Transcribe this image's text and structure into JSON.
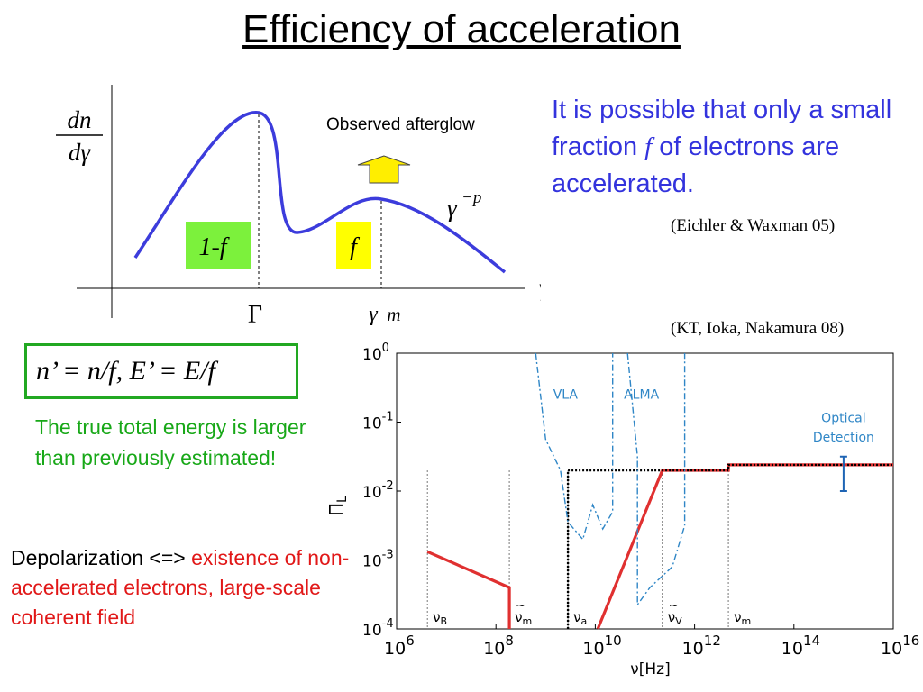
{
  "title": "Efficiency of acceleration",
  "distribution_plot": {
    "y_label_num": "dn",
    "y_label_den": "dγ",
    "x_label": "γ",
    "power_law": "γ",
    "power_law_exp": "−p",
    "peak1_label": "Γ",
    "peak2_label": "γ",
    "peak2_sub": "m",
    "box1_label": "1-f",
    "box2_label": "f",
    "observed_label": "Observed afterglow",
    "colors": {
      "curve": "#3c3cdc",
      "box": "#7cf13c",
      "box2": "#ffff00",
      "arrow": "#ffee00"
    }
  },
  "right_text": {
    "line_a": "It is possible that only a small fraction ",
    "italic_f": "f",
    "line_b": " of electrons are accelerated."
  },
  "citation1": "(Eichler & Waxman 05)",
  "citation2": "(KT, Ioka, Nakamura 08)",
  "equation": "n’ = n/f, E’ = E/f",
  "green_text": "The true total energy is larger than previously estimated!",
  "depolarization": {
    "prefix": "Depolarization <=> ",
    "red": "existence of non-accelerated electrons, large-scale coherent field"
  },
  "chart_data": {
    "type": "line",
    "xlabel": "ν[Hz]",
    "ylabel": "Π",
    "ylabel_sub": "L",
    "x_scale": "log",
    "y_scale": "log",
    "xlim_log10": [
      6,
      16
    ],
    "ylim_log10": [
      -4,
      0
    ],
    "x_ticks": [
      {
        "base": "10",
        "exp": "6"
      },
      {
        "base": "10",
        "exp": "8"
      },
      {
        "base": "10",
        "exp": "10"
      },
      {
        "base": "10",
        "exp": "12"
      },
      {
        "base": "10",
        "exp": "14"
      },
      {
        "base": "10",
        "exp": "16"
      }
    ],
    "y_ticks": [
      {
        "base": "10",
        "exp": "0"
      },
      {
        "base": "10",
        "exp": "-1"
      },
      {
        "base": "10",
        "exp": "-2"
      },
      {
        "base": "10",
        "exp": "-3"
      },
      {
        "base": "10",
        "exp": "-4"
      }
    ],
    "series": [
      {
        "name": "polarization (red)",
        "color": "#e03030",
        "style": "solid",
        "segments": [
          [
            [
              6.62,
              -2.88
            ],
            [
              8.27,
              -3.4
            ],
            [
              8.27,
              -4.0
            ]
          ],
          [
            [
              10.05,
              -4.0
            ],
            [
              11.35,
              -1.7
            ],
            [
              12.68,
              -1.7
            ],
            [
              12.68,
              -1.62
            ],
            [
              16.0,
              -1.62
            ]
          ]
        ]
      },
      {
        "name": "upper bound (black dotted)",
        "color": "#000000",
        "style": "dotted",
        "points": [
          [
            9.45,
            -4.0
          ],
          [
            9.45,
            -1.7
          ],
          [
            12.68,
            -1.7
          ],
          [
            12.68,
            -1.62
          ],
          [
            16.0,
            -1.62
          ]
        ]
      },
      {
        "name": "VLA",
        "color": "#2f86c6",
        "style": "dashdot",
        "points": [
          [
            8.8,
            0.0
          ],
          [
            9.0,
            -1.25
          ],
          [
            9.3,
            -1.7
          ],
          [
            9.45,
            -2.45
          ],
          [
            9.75,
            -2.7
          ],
          [
            9.95,
            -2.2
          ],
          [
            10.15,
            -2.55
          ],
          [
            10.35,
            -2.3
          ],
          [
            10.35,
            0.0
          ]
        ]
      },
      {
        "name": "ALMA",
        "color": "#2f86c6",
        "style": "dashdot",
        "points": [
          [
            10.65,
            0.0
          ],
          [
            10.85,
            -1.5
          ],
          [
            10.85,
            -3.65
          ],
          [
            11.1,
            -3.4
          ],
          [
            11.55,
            -3.1
          ],
          [
            11.8,
            -2.5
          ],
          [
            11.8,
            0.0
          ]
        ]
      }
    ],
    "vlines": [
      {
        "x": 6.62,
        "label": "ν",
        "sub": "B",
        "tilde": false
      },
      {
        "x": 8.27,
        "label": "ν",
        "sub": "m",
        "tilde": true
      },
      {
        "x": 9.45,
        "label": "ν",
        "sub": "a",
        "tilde": false
      },
      {
        "x": 11.35,
        "label": "ν",
        "sub": "V",
        "tilde": true
      },
      {
        "x": 12.68,
        "label": "ν",
        "sub": "m",
        "tilde": false
      }
    ],
    "annotations": [
      {
        "text": "VLA",
        "x": 9.4,
        "y": -0.66,
        "color": "#2f86c6"
      },
      {
        "text": "ALMA",
        "x": 10.93,
        "y": -0.66,
        "color": "#2f86c6"
      },
      {
        "text": "Optical",
        "x": 15.0,
        "y": -1.0,
        "color": "#2f86c6"
      },
      {
        "text": "Detection",
        "x": 15.0,
        "y": -1.28,
        "color": "#2f86c6"
      }
    ],
    "error_bar": {
      "x": 15.0,
      "y_low": -2.0,
      "y_high": -1.5,
      "color": "#1e64b4"
    }
  }
}
